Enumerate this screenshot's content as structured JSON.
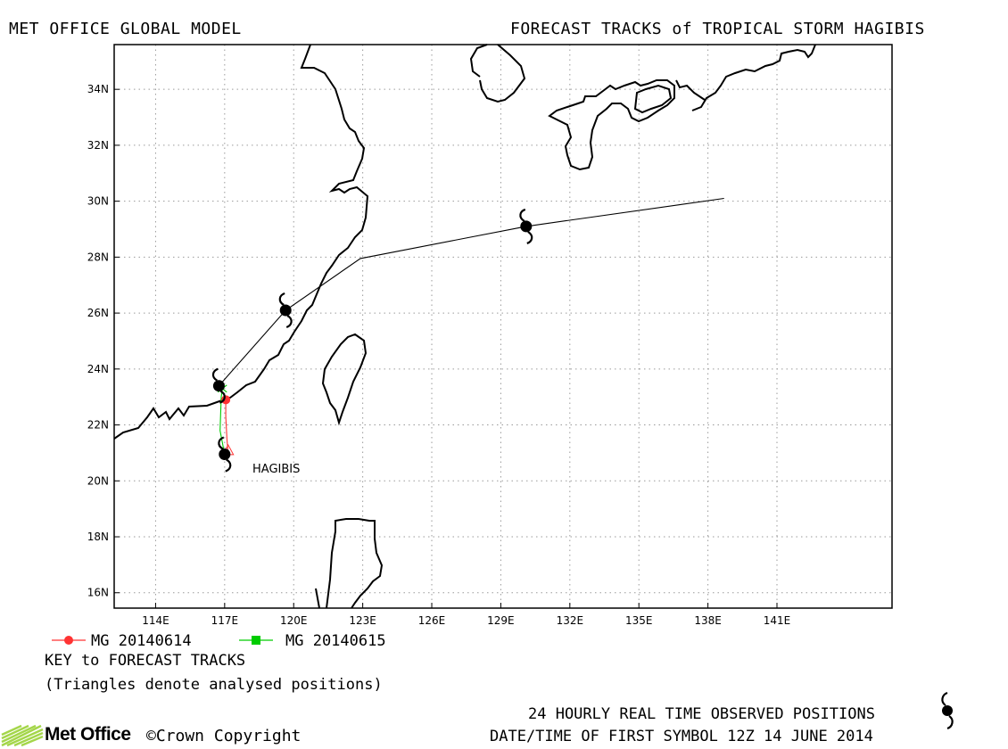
{
  "header": {
    "model_title": "MET OFFICE GLOBAL MODEL",
    "chart_title": "FORECAST TRACKS of TROPICAL STORM HAGIBIS"
  },
  "map": {
    "lon_range": [
      112.2,
      146.0
    ],
    "lat_range": [
      15.45,
      35.6
    ],
    "lat_ticks": [
      "16N",
      "18N",
      "20N",
      "22N",
      "24N",
      "26N",
      "28N",
      "30N",
      "32N",
      "34N"
    ],
    "lon_ticks": [
      "114E",
      "117E",
      "120E",
      "123E",
      "126E",
      "129E",
      "132E",
      "135E",
      "138E",
      "141E"
    ],
    "grid": "dotted",
    "land_color": "#000000"
  },
  "chart_data": {
    "type": "map",
    "storm_label": "HAGIBIS",
    "analysed_positions": [
      {
        "lon": 117.15,
        "lat": 21.0,
        "color": "#ff3333"
      }
    ],
    "observed_positions_24h": [
      {
        "lon": 117.0,
        "lat": 20.95
      },
      {
        "lon": 116.75,
        "lat": 23.4
      },
      {
        "lon": 119.65,
        "lat": 26.1
      },
      {
        "lon": 130.1,
        "lat": 29.1
      }
    ],
    "tracks": [
      {
        "name": "MG 20140614",
        "color": "#ff3333",
        "marker": "circle",
        "points": [
          [
            117.15,
            21.0
          ],
          [
            117.1,
            21.5
          ],
          [
            117.05,
            22.3
          ],
          [
            117.05,
            22.9
          ]
        ]
      },
      {
        "name": "MG 20140615",
        "color": "#00cc00",
        "marker": "square",
        "points": [
          [
            117.0,
            20.95
          ],
          [
            116.8,
            21.8
          ],
          [
            116.85,
            23.0
          ],
          [
            116.9,
            23.3
          ]
        ]
      },
      {
        "name": "observed",
        "color": "#000000",
        "marker": "none",
        "points": [
          [
            116.9,
            23.3
          ],
          [
            116.75,
            23.4
          ],
          [
            119.65,
            26.1
          ],
          [
            122.9,
            27.95
          ],
          [
            130.1,
            29.1
          ],
          [
            138.7,
            30.1
          ]
        ]
      }
    ]
  },
  "legend": {
    "series": [
      {
        "label": "MG 20140614",
        "color": "#ff3333",
        "marker": "circle"
      },
      {
        "label": "MG 20140615",
        "color": "#00cc00",
        "marker": "square"
      }
    ],
    "key_title": "KEY to FORECAST TRACKS",
    "note": "(Triangles denote analysed positions)"
  },
  "footer": {
    "observed_label": "24 HOURLY REAL TIME OBSERVED POSITIONS",
    "date_label": "DATE/TIME OF FIRST SYMBOL 12Z 14 JUNE 2014",
    "logo_text": "Met Office",
    "copyright": "©Crown Copyright"
  }
}
